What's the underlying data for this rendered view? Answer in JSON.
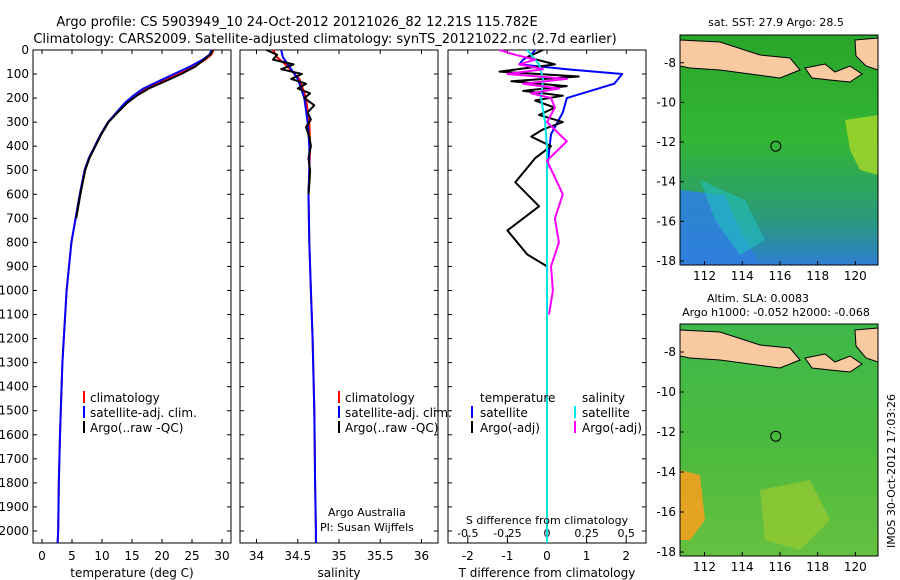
{
  "title_line1": "Argo profile: CS 5903949_10 24-Oct-2012 20121026_82 12.21S 115.782E",
  "title_line2": "Climatology: CARS2009. Satellite-adjusted climatology: synTS_20121022.nc (2.7d earlier)",
  "colors": {
    "clim": "#ff0000",
    "sat": "#0000ff",
    "argo": "#000000",
    "sal_sat": "#00e5e5",
    "sal_argo": "#ff00ff",
    "land": "#f9c9a0"
  },
  "depth_axis": {
    "ylim": [
      0,
      2050
    ],
    "ticks": [
      0,
      100,
      200,
      300,
      400,
      500,
      600,
      700,
      800,
      900,
      1000,
      1100,
      1200,
      1300,
      1400,
      1500,
      1600,
      1700,
      1800,
      1900,
      2000
    ]
  },
  "chart_data": [
    {
      "type": "line",
      "name": "temperature-profile",
      "xlabel": "temperature (deg C)",
      "xlim": [
        -1.5,
        31.5
      ],
      "xticks": [
        0,
        5,
        10,
        15,
        20,
        25,
        30
      ],
      "xtick_labels": [
        "0",
        "5",
        "10",
        "15",
        "20",
        "25",
        "30"
      ],
      "legend": [
        "climatology",
        "satellite-adj. clim.",
        "Argo(..raw -QC)"
      ],
      "series": [
        {
          "name": "climatology",
          "color": "#ff0000",
          "x": [
            28.6,
            28.2,
            27.2,
            25.3,
            22.8,
            20.0,
            17.4,
            15.5,
            14.0,
            12.5,
            11.0,
            9.8,
            8.8,
            7.8,
            7.1,
            6.3,
            5.6,
            4.9,
            4.1,
            3.4,
            3.0,
            2.8,
            2.7,
            2.6
          ],
          "y": [
            0,
            20,
            40,
            70,
            100,
            130,
            160,
            190,
            220,
            260,
            300,
            350,
            400,
            450,
            500,
            600,
            700,
            800,
            1000,
            1300,
            1600,
            1800,
            2000,
            2050
          ]
        },
        {
          "name": "satellite-adj. clim.",
          "color": "#0000ff",
          "x": [
            28.3,
            27.9,
            26.8,
            24.6,
            22.0,
            19.4,
            16.9,
            15.2,
            13.8,
            12.4,
            11.0,
            9.8,
            8.8,
            7.8,
            7.1,
            6.3,
            5.6,
            4.9,
            4.1,
            3.4,
            3.0,
            2.8,
            2.7,
            2.6
          ],
          "y": [
            0,
            20,
            40,
            70,
            100,
            130,
            160,
            190,
            220,
            260,
            300,
            350,
            400,
            450,
            500,
            600,
            700,
            800,
            1000,
            1300,
            1600,
            1800,
            2000,
            2050
          ]
        },
        {
          "name": "Argo",
          "color": "#000000",
          "x": [
            28.5,
            28.0,
            27.0,
            25.5,
            23.2,
            20.5,
            17.8,
            15.8,
            14.2,
            12.6,
            11.1,
            9.9,
            8.9,
            7.9,
            7.2,
            6.4,
            5.7
          ],
          "y": [
            0,
            20,
            40,
            70,
            100,
            130,
            160,
            190,
            220,
            260,
            300,
            350,
            400,
            450,
            500,
            600,
            700
          ]
        }
      ]
    },
    {
      "type": "line",
      "name": "salinity-profile",
      "xlabel": "salinity",
      "xlim": [
        33.8,
        36.2
      ],
      "xticks": [
        34,
        34.5,
        35,
        35.5,
        36
      ],
      "xtick_labels": [
        "34",
        "34.5",
        "35",
        "35.5",
        "36"
      ],
      "legend": [
        "climatology",
        "satellite-adj. clim.",
        "Argo(..raw -QC)"
      ],
      "annotation_line1": "Argo Australia",
      "annotation_line2": "PI: Susan Wijffels",
      "series": [
        {
          "name": "climatology",
          "color": "#ff0000",
          "x": [
            34.2,
            34.25,
            34.35,
            34.52,
            34.6,
            34.64,
            34.65,
            34.64,
            34.63,
            34.64,
            34.66,
            34.68,
            34.7,
            34.71,
            34.72,
            34.72
          ],
          "y": [
            0,
            30,
            60,
            120,
            200,
            300,
            400,
            500,
            600,
            800,
            1000,
            1200,
            1500,
            1800,
            2000,
            2050
          ]
        },
        {
          "name": "satellite-adj. clim.",
          "color": "#0000ff",
          "x": [
            34.3,
            34.32,
            34.38,
            34.5,
            34.58,
            34.62,
            34.64,
            34.64,
            34.63,
            34.64,
            34.66,
            34.68,
            34.7,
            34.71,
            34.72,
            34.72
          ],
          "y": [
            0,
            30,
            60,
            120,
            200,
            300,
            400,
            500,
            600,
            800,
            1000,
            1200,
            1500,
            1800,
            2000,
            2050
          ]
        },
        {
          "name": "Argo",
          "color": "#000000",
          "x": [
            34.12,
            34.25,
            34.2,
            34.45,
            34.3,
            34.55,
            34.42,
            34.6,
            34.5,
            34.65,
            34.58,
            34.7,
            34.62,
            34.66,
            34.6,
            34.64,
            34.66,
            34.63,
            34.65,
            34.64,
            34.63
          ],
          "y": [
            0,
            20,
            40,
            60,
            80,
            100,
            120,
            140,
            160,
            180,
            200,
            230,
            260,
            290,
            320,
            360,
            400,
            450,
            500,
            560,
            600
          ]
        }
      ]
    },
    {
      "type": "line",
      "name": "difference-profile",
      "xlabel": "T difference from climatology",
      "xlabel_top": "S difference from climatology",
      "xlim": [
        -2.5,
        2.5
      ],
      "xticks": [
        -2,
        -1,
        0,
        1,
        2
      ],
      "xtick_labels": [
        "-2",
        "-1",
        "0",
        "1",
        "2"
      ],
      "sticks": [
        -2,
        -1,
        0,
        1,
        2
      ],
      "stick_labels": [
        "-0.5",
        "-0.25",
        "0",
        "0.25",
        "0.5"
      ],
      "legend_temp_header": "temperature",
      "legend_sal_header": "salinity",
      "legend": [
        "satellite",
        "Argo(-adj)",
        "satellite",
        "Argo(-adj)"
      ],
      "series": [
        {
          "name": "temperature satellite",
          "color": "#0000ff",
          "x": [
            -0.3,
            -0.4,
            -0.6,
            -0.7,
            0.5,
            1.9,
            1.7,
            0.5,
            0.4,
            0.1,
            0.0,
            0.0,
            0.0,
            0.0
          ],
          "y": [
            0,
            20,
            40,
            60,
            80,
            100,
            140,
            200,
            260,
            350,
            500,
            800,
            1200,
            2050
          ]
        },
        {
          "name": "temperature Argo",
          "color": "#000000",
          "x": [
            -0.1,
            -0.5,
            0.2,
            -1.2,
            0.8,
            -0.9,
            0.5,
            -0.6,
            0.4,
            -0.3,
            0.2,
            -0.2,
            0.4,
            -0.1,
            -0.4,
            0.1,
            -0.3,
            -0.8,
            -0.2,
            -1.0,
            -0.5,
            0.0,
            0.0
          ],
          "y": [
            0,
            30,
            60,
            90,
            110,
            130,
            150,
            170,
            190,
            210,
            240,
            270,
            300,
            330,
            360,
            400,
            450,
            550,
            650,
            750,
            850,
            900,
            1300
          ]
        },
        {
          "name": "salinity satellite",
          "color": "#00e5e5",
          "x": [
            -0.5,
            -0.2,
            -0.1,
            -0.15,
            -0.05,
            0.0,
            0.0,
            0.0,
            0.0
          ],
          "y": [
            0,
            60,
            120,
            200,
            300,
            400,
            600,
            1000,
            2050
          ]
        },
        {
          "name": "salinity Argo",
          "color": "#ff00ff",
          "x": [
            -1.2,
            -0.8,
            -0.3,
            -0.7,
            -0.1,
            -1.0,
            0.5,
            -0.6,
            0.3,
            -0.4,
            0.1,
            0.2,
            0.0,
            0.5,
            0.0,
            0.4,
            0.2,
            0.3,
            0.1,
            0.15,
            0.05
          ],
          "y": [
            0,
            20,
            40,
            60,
            80,
            100,
            120,
            140,
            160,
            180,
            200,
            240,
            300,
            380,
            460,
            600,
            700,
            800,
            900,
            1000,
            1100
          ]
        }
      ]
    },
    {
      "type": "heatmap",
      "name": "sst-map",
      "title": "sat. SST: 27.9 Argo: 28.5",
      "xticks": [
        112,
        114,
        116,
        118,
        120
      ],
      "yticks": [
        -8,
        -10,
        -12,
        -14,
        -16,
        -18
      ],
      "xlim": [
        110.7,
        121.2
      ],
      "ylim": [
        -18.2,
        -6.6
      ],
      "marker": {
        "lon": 115.78,
        "lat": -12.21
      }
    },
    {
      "type": "heatmap",
      "name": "sla-map",
      "title_line1": "Altim. SLA: 0.0083",
      "title_line2": "Argo h1000: -0.052 h2000: -0.068",
      "xticks": [
        112,
        114,
        116,
        118,
        120
      ],
      "yticks": [
        -8,
        -10,
        -12,
        -14,
        -16,
        -18
      ],
      "xlim": [
        110.7,
        121.2
      ],
      "ylim": [
        -18.2,
        -6.6
      ],
      "marker": {
        "lon": 115.78,
        "lat": -12.21
      }
    }
  ],
  "footer_stamp": "IMOS 30-Oct-2012 17:03:26"
}
